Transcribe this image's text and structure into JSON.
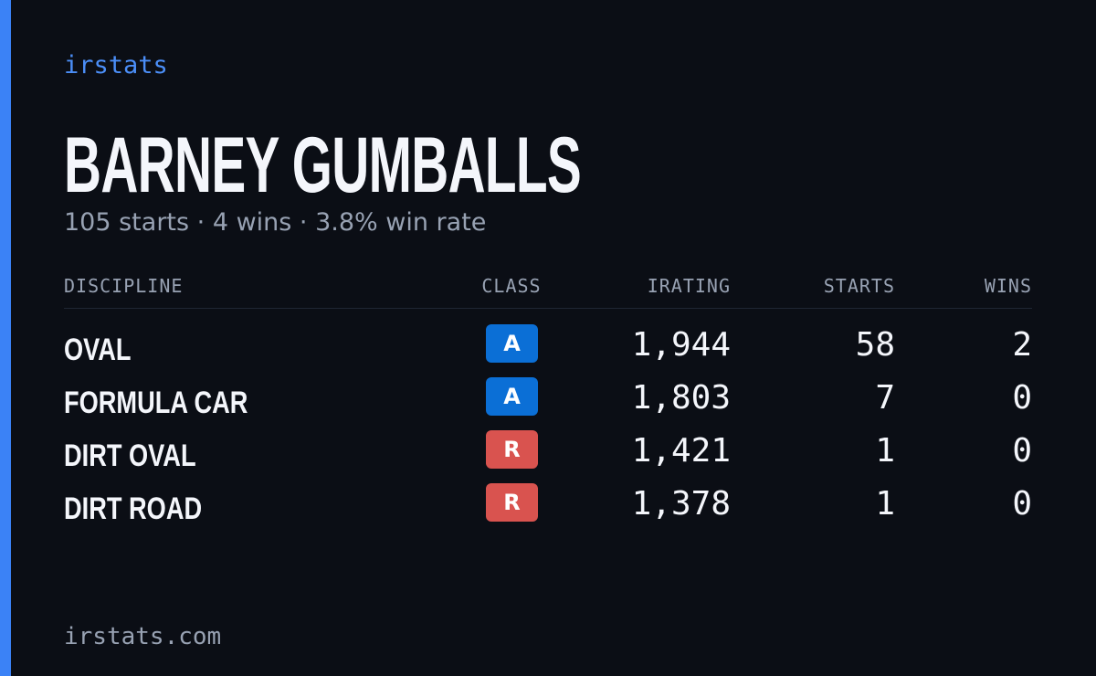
{
  "brand": "irstats",
  "driver": {
    "name": "BARNEY GUMBALLS",
    "summary": "105 starts · 4 wins · 3.8% win rate"
  },
  "table": {
    "headers": [
      "DISCIPLINE",
      "CLASS",
      "IRATING",
      "STARTS",
      "WINS"
    ],
    "rows": [
      {
        "discipline": "OVAL",
        "class": "A",
        "class_color": "#0b6fd6",
        "irating": "1,944",
        "starts": "58",
        "wins": "2"
      },
      {
        "discipline": "FORMULA CAR",
        "class": "A",
        "class_color": "#0b6fd6",
        "irating": "1,803",
        "starts": "7",
        "wins": "0"
      },
      {
        "discipline": "DIRT OVAL",
        "class": "R",
        "class_color": "#d9534f",
        "irating": "1,421",
        "starts": "1",
        "wins": "0"
      },
      {
        "discipline": "DIRT ROAD",
        "class": "R",
        "class_color": "#d9534f",
        "irating": "1,378",
        "starts": "1",
        "wins": "0"
      }
    ]
  },
  "footer": "irstats.com"
}
